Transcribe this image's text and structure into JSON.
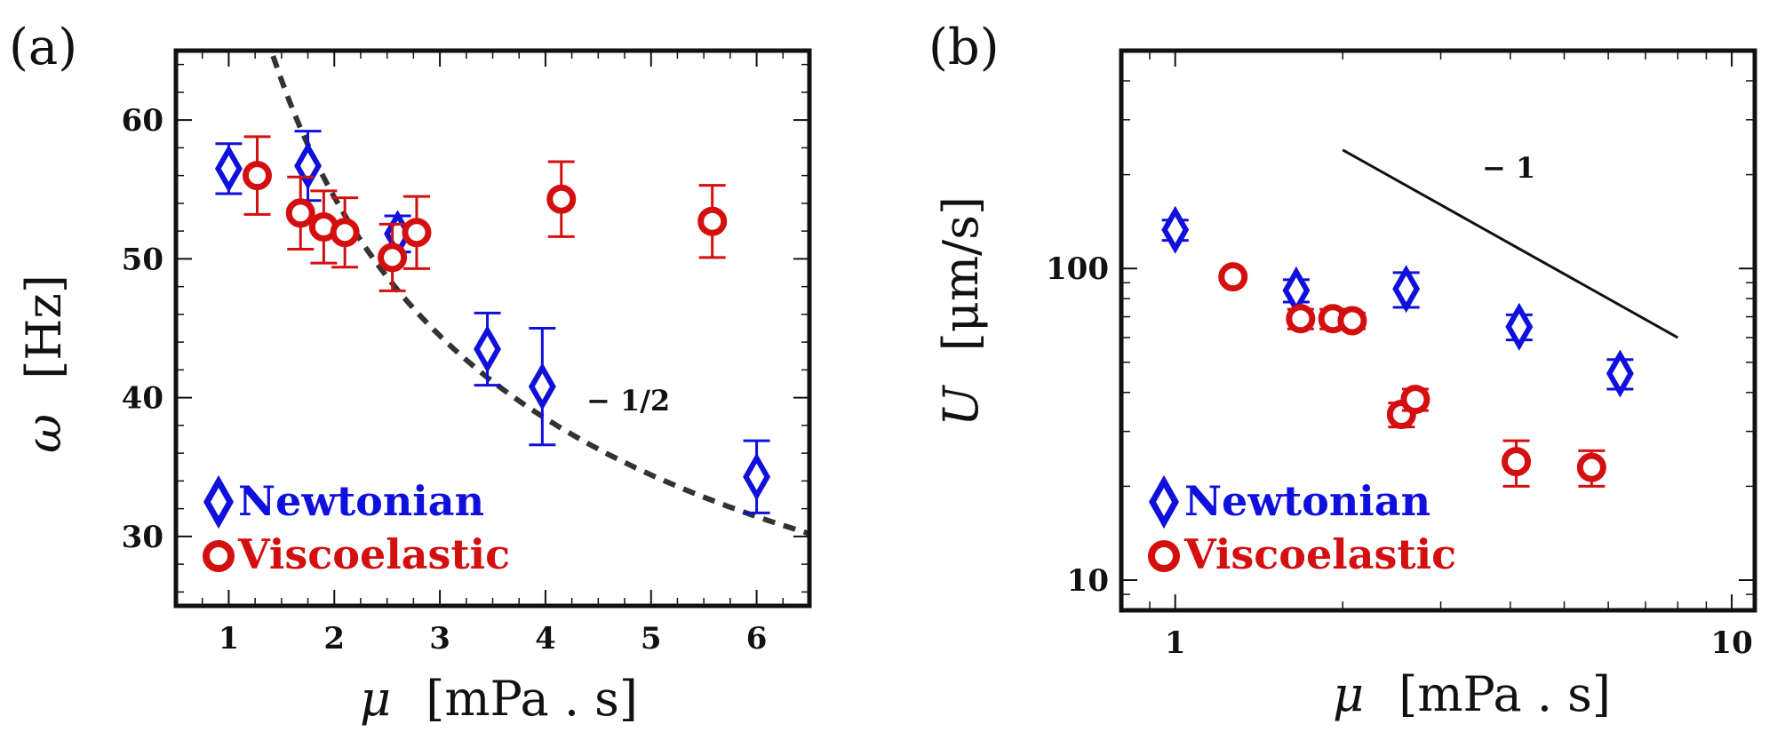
{
  "figure": {
    "colors": {
      "newtonian": "#1010dd",
      "viscoelastic": "#d40f0f",
      "axis": "#111111"
    }
  },
  "chart_data": [
    {
      "panel": "(a)",
      "type": "scatter",
      "xscale": "linear",
      "yscale": "linear",
      "xlim": [
        0.5,
        6.5
      ],
      "ylim": [
        25,
        65
      ],
      "xticks": [
        1,
        2,
        3,
        4,
        5,
        6
      ],
      "xtick_labels": [
        "1",
        "2",
        "3",
        "4",
        "5",
        "6"
      ],
      "yticks": [
        30,
        40,
        50,
        60
      ],
      "ytick_labels": [
        "30",
        "40",
        "50",
        "60"
      ],
      "xlabel_symbol": "μ",
      "xlabel_unit": "[mPa . s]",
      "ylabel_symbol": "ω",
      "ylabel_unit": "[Hz]",
      "series": [
        {
          "name": "Newtonian",
          "marker": "diamond",
          "x": [
            1.0,
            1.75,
            2.6,
            3.45,
            3.97,
            6.0
          ],
          "y": [
            56.5,
            56.7,
            51.8,
            43.5,
            40.8,
            34.3
          ],
          "err": [
            1.8,
            2.5,
            1.3,
            2.6,
            4.2,
            2.6
          ]
        },
        {
          "name": "Viscoelastic",
          "marker": "circle",
          "x": [
            1.27,
            1.68,
            1.9,
            2.1,
            2.55,
            2.78,
            4.15,
            5.58
          ],
          "y": [
            56.0,
            53.3,
            52.3,
            51.9,
            50.1,
            51.9,
            54.3,
            52.7
          ],
          "err": [
            2.8,
            2.6,
            2.6,
            2.5,
            2.4,
            2.6,
            2.7,
            2.6
          ]
        }
      ],
      "fit": {
        "type": "power-law",
        "exponent": -0.5,
        "coef": 77,
        "x_range": [
          1.42,
          6.5
        ],
        "style": "dashed",
        "label": "− 1/2"
      },
      "legend": {
        "position": "bottom-left",
        "entries": [
          "Newtonian",
          "Viscoelastic"
        ]
      }
    },
    {
      "panel": "(b)",
      "type": "scatter",
      "xscale": "log",
      "yscale": "log",
      "xlim": [
        0.8,
        11
      ],
      "ylim": [
        8,
        500
      ],
      "xticks": [
        1,
        10
      ],
      "xtick_labels": [
        "1",
        "10"
      ],
      "yticks": [
        10,
        100
      ],
      "ytick_labels": [
        "10",
        "100"
      ],
      "xlabel_symbol": "μ",
      "xlabel_unit": "[mPa . s]",
      "ylabel_symbol": "U",
      "ylabel_unit": "[μm/s]",
      "series": [
        {
          "name": "Newtonian",
          "marker": "diamond",
          "x": [
            1.0,
            1.65,
            2.6,
            4.15,
            6.3
          ],
          "y": [
            133,
            85,
            86,
            65,
            46
          ],
          "err": [
            10,
            7,
            11,
            6,
            5
          ]
        },
        {
          "name": "Viscoelastic",
          "marker": "circle",
          "x": [
            1.27,
            1.68,
            1.92,
            2.08,
            2.55,
            2.7,
            4.1,
            5.6
          ],
          "y": [
            94,
            69,
            69,
            68,
            34,
            38,
            24,
            23
          ],
          "err": [
            3,
            5,
            5,
            4,
            3,
            3,
            4,
            3
          ]
        }
      ],
      "fit": {
        "type": "slope-guide",
        "exponent": -1,
        "x_range": [
          2.0,
          8.0
        ],
        "y_start": 240,
        "style": "solid",
        "label": "− 1"
      },
      "legend": {
        "position": "bottom-left",
        "entries": [
          "Newtonian",
          "Viscoelastic"
        ]
      }
    }
  ]
}
